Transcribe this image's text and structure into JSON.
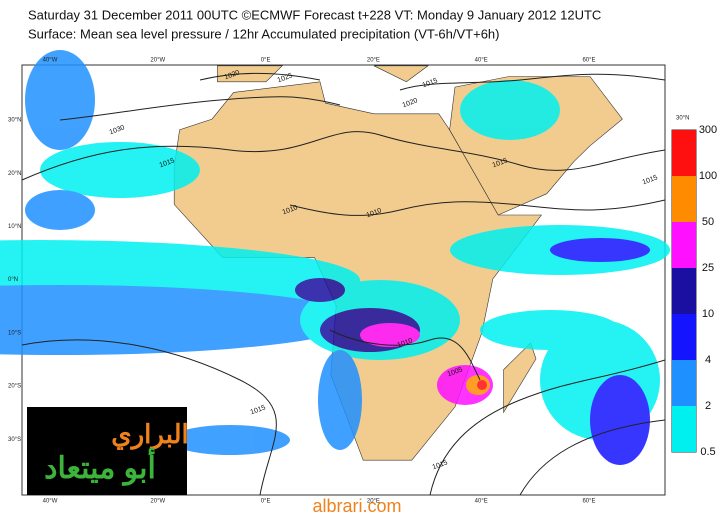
{
  "header": {
    "line1": "Saturday 31 December 2011 00UTC ©ECMWF Forecast t+228 VT: Monday 9 January 2012 12UTC",
    "line2": "Surface: Mean sea level pressure / 12hr Accumulated precipitation (VT-6h/VT+6h)"
  },
  "map": {
    "lon_labels": [
      "40°W",
      "20°W",
      "0°E",
      "20°E",
      "40°E",
      "60°E"
    ],
    "lat_labels": [
      "30°N",
      "20°N",
      "10°N",
      "0°N",
      "10°S",
      "20°S",
      "30°S"
    ],
    "contour_labels": [
      "1020",
      "1025",
      "1030",
      "1015",
      "1010",
      "1020",
      "1015",
      "1015",
      "1010",
      "1010",
      "1005",
      "1015",
      "1015",
      "1015"
    ]
  },
  "colorbar": {
    "ticks": [
      "0.5",
      "2",
      "4",
      "10",
      "25",
      "50",
      "100",
      "300"
    ],
    "colors": [
      "#00f0f0",
      "#1e90ff",
      "#1414ff",
      "#1a0fa0",
      "#ff10ff",
      "#ff8c00",
      "#ff1010"
    ]
  },
  "watermark": {
    "line1": "البراري",
    "line2": "أبو ميتعاد",
    "site": "albrari.com"
  }
}
